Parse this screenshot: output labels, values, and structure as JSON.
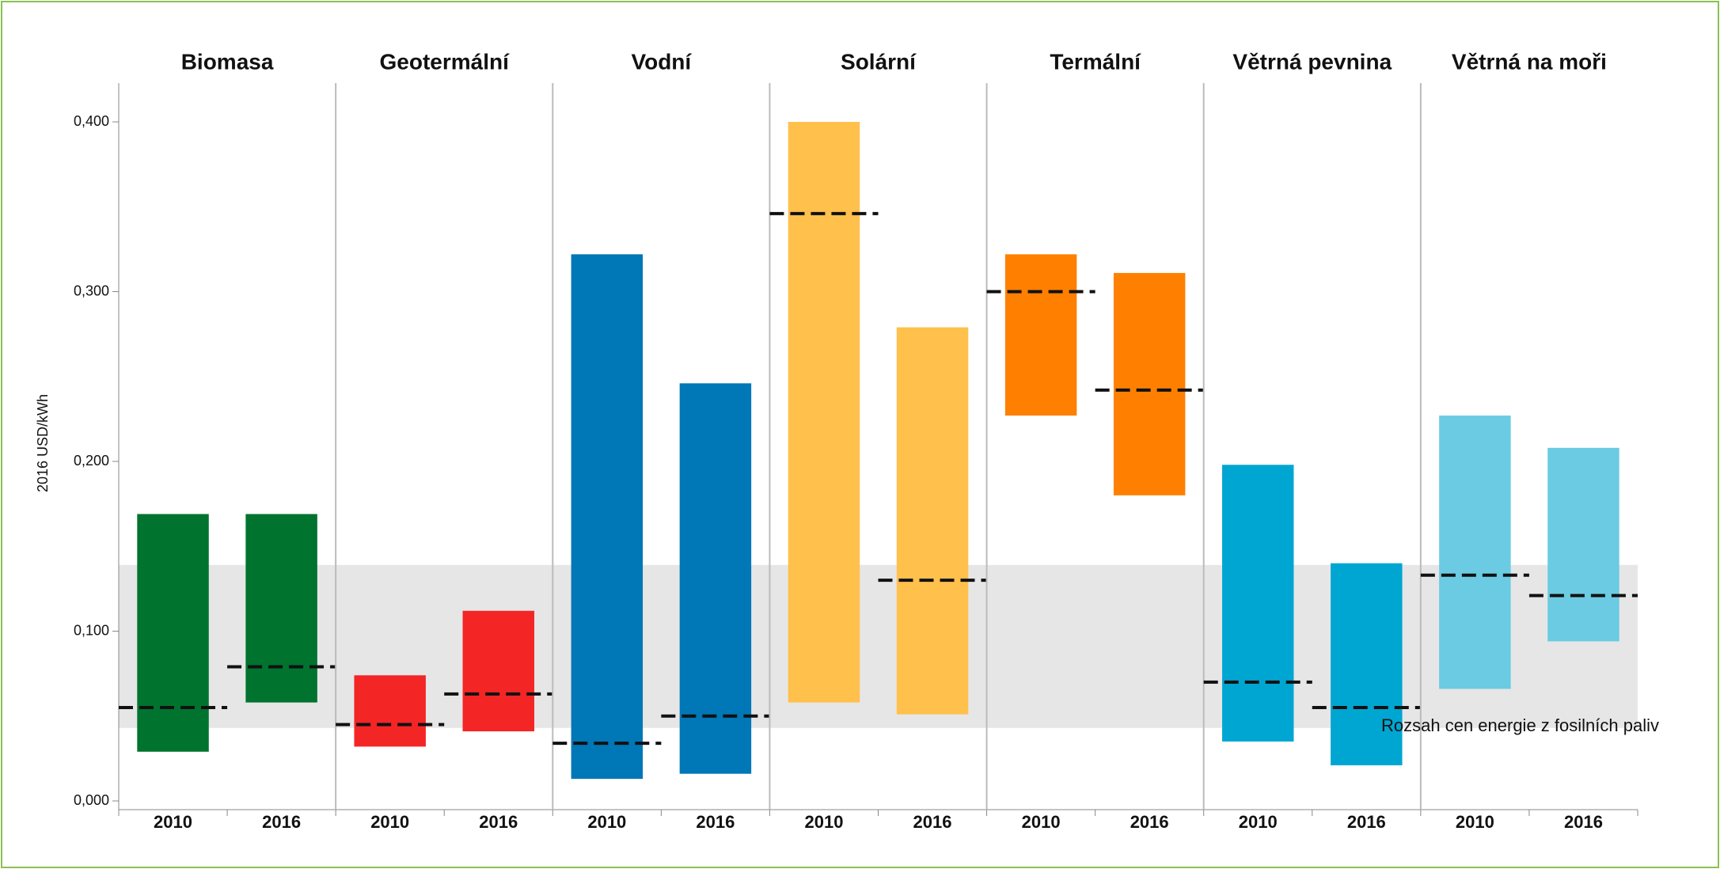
{
  "chart_data": {
    "type": "range",
    "ylabel": "2016 USD/kWh",
    "annotation": "Rozsah cen energie z fosilních paliv",
    "fossil_range": [
      0.043,
      0.139
    ],
    "ylim": [
      0,
      0.4
    ],
    "yticks": [
      {
        "value": 0,
        "label": "0,000"
      },
      {
        "value": 0.1,
        "label": "0,100"
      },
      {
        "value": 0.2,
        "label": "0,200"
      },
      {
        "value": 0.3,
        "label": "0,300"
      },
      {
        "value": 0.4,
        "label": "0,400"
      }
    ],
    "groups": [
      {
        "name": "Biomasa",
        "color": "#00732e",
        "categories": [
          "2010",
          "2016"
        ],
        "low": [
          0.029,
          0.058
        ],
        "high": [
          0.169,
          0.169
        ],
        "average": [
          0.055,
          0.079
        ]
      },
      {
        "name": "Geotermální",
        "color": "#f42525",
        "categories": [
          "2010",
          "2016"
        ],
        "low": [
          0.032,
          0.041
        ],
        "high": [
          0.074,
          0.112
        ],
        "average": [
          0.045,
          0.063
        ]
      },
      {
        "name": "Vodní",
        "color": "#0077b6",
        "categories": [
          "2010",
          "2016"
        ],
        "low": [
          0.013,
          0.016
        ],
        "high": [
          0.322,
          0.246
        ],
        "average": [
          0.034,
          0.05
        ]
      },
      {
        "name": "Solární",
        "color": "#ffc04c",
        "categories": [
          "2010",
          "2016"
        ],
        "low": [
          0.058,
          0.051
        ],
        "high": [
          0.4,
          0.279
        ],
        "average": [
          0.346,
          0.13
        ]
      },
      {
        "name": "Termální",
        "color": "#ff8000",
        "categories": [
          "2010",
          "2016"
        ],
        "low": [
          0.227,
          0.18
        ],
        "high": [
          0.322,
          0.311
        ],
        "average": [
          0.3,
          0.242
        ]
      },
      {
        "name": "Větrná pevnina",
        "color": "#00a6d2",
        "categories": [
          "2010",
          "2016"
        ],
        "low": [
          0.035,
          0.021
        ],
        "high": [
          0.198,
          0.14
        ],
        "average": [
          0.07,
          0.055
        ]
      },
      {
        "name": "Větrná na moři",
        "color": "#6bcbe3",
        "categories": [
          "2010",
          "2016"
        ],
        "low": [
          0.066,
          0.094
        ],
        "high": [
          0.227,
          0.208
        ],
        "average": [
          0.133,
          0.121
        ]
      }
    ]
  }
}
